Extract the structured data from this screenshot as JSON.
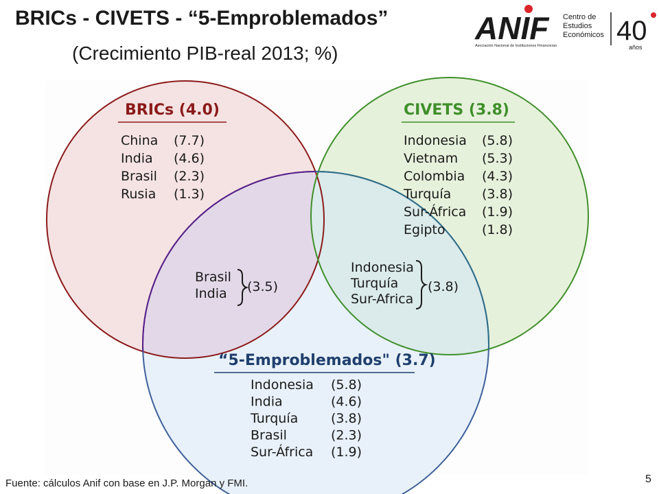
{
  "slide": {
    "title": "BRICs - CIVETS - “5-Emproblemados”",
    "subtitle": "(Crecimiento PIB-real 2013; %)",
    "source": "Fuente: cálculos Anif con base en J.P.  Morgan y FMI.",
    "page_number": "5"
  },
  "logo": {
    "wordmark": "ANIF",
    "tagline": "Asociación Nacional de Instituciones Financieras",
    "center_line1": "Centro de",
    "center_line2": "Estudios",
    "center_line3": "Económicos",
    "anniversary": "40",
    "anniversary_sub": "años",
    "colors": {
      "red": "#d9252b",
      "dark": "#1a1a1a"
    }
  },
  "venn": {
    "colors": {
      "brics_stroke": "#8b1a1a",
      "brics_fill": "#f5e3e3",
      "civets_stroke": "#3f8f2a",
      "civets_fill": "#e3efd8",
      "emp_stroke": "#3d5f9a",
      "emp_fill": "#e4eef8",
      "overlap_left_stroke": "#5a1e88",
      "overlap_left_fill": "#e3d8e8",
      "overlap_right_stroke": "#2f6e87",
      "overlap_right_fill": "#dbeaea"
    },
    "brics": {
      "header": "BRICs (4.0)",
      "items": [
        {
          "country": "China",
          "value": "(7.7)"
        },
        {
          "country": "India",
          "value": "(4.6)"
        },
        {
          "country": "Brasil",
          "value": "(2.3)"
        },
        {
          "country": "Rusia",
          "value": "(1.3)"
        }
      ]
    },
    "civets": {
      "header": "CIVETS (3.8)",
      "items": [
        {
          "country": "Indonesia",
          "value": "(5.8)"
        },
        {
          "country": "Vietnam",
          "value": "(5.3)"
        },
        {
          "country": "Colombia",
          "value": "(4.3)"
        },
        {
          "country": "Turquía",
          "value": "(3.8)"
        },
        {
          "country": "Sur-África",
          "value": "(1.9)"
        },
        {
          "country": "Egipto",
          "value": "(1.8)"
        }
      ]
    },
    "emproblemados": {
      "header": "“5-Emproblemados\" (3.7)",
      "items": [
        {
          "country": "Indonesia",
          "value": "(5.8)"
        },
        {
          "country": "India",
          "value": "(4.6)"
        },
        {
          "country": "Turquía",
          "value": "(3.8)"
        },
        {
          "country": "Brasil",
          "value": "(2.3)"
        },
        {
          "country": "Sur-África",
          "value": "(1.9)"
        }
      ]
    },
    "overlap_brics_emp": {
      "countries": [
        "Brasil",
        "India"
      ],
      "value": "(3.5)"
    },
    "overlap_civets_emp": {
      "countries": [
        "Indonesia",
        "Turquía",
        "Sur-Africa"
      ],
      "value": "(3.8)"
    }
  }
}
